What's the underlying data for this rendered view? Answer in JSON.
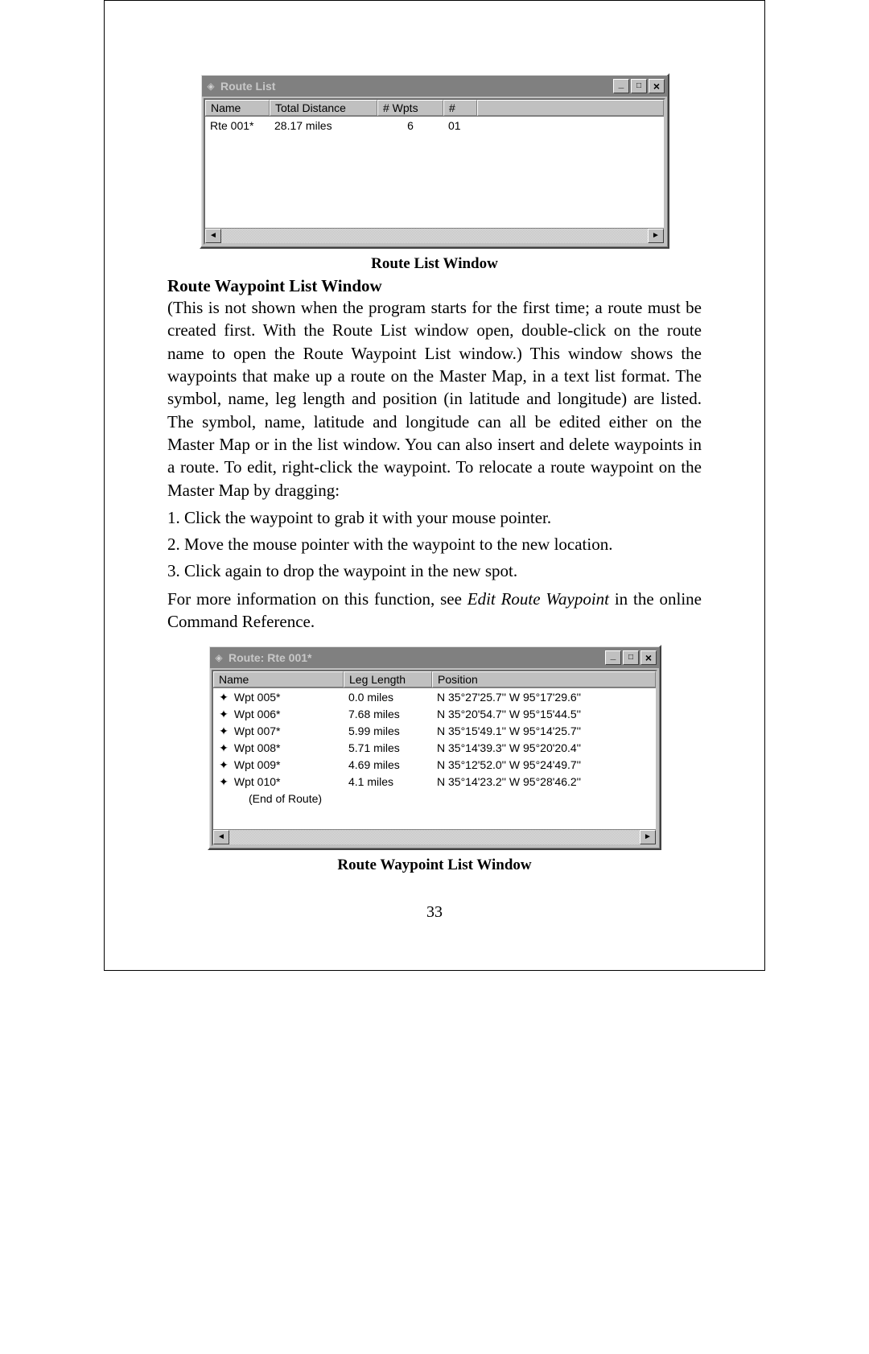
{
  "routeListWindow": {
    "title": "Route List",
    "columns": [
      "Name",
      "Total Distance",
      "# Wpts",
      "#"
    ],
    "rows": [
      {
        "name": "Rte 001*",
        "distance": "28.17 miles",
        "wpts": "6",
        "num": "01"
      }
    ],
    "colors": {
      "titlebar_bg": "#808080",
      "title_text": "#c8c8c8",
      "chrome": "#c0c0c0",
      "client_bg": "#ffffff"
    }
  },
  "waypointWindow": {
    "title": "Route: Rte 001*",
    "columns": [
      "Name",
      "Leg Length",
      "Position"
    ],
    "rows": [
      {
        "name": "Wpt 005*",
        "leg": "0.0 miles",
        "pos": "N 35°27'25.7'' W  95°17'29.6''"
      },
      {
        "name": "Wpt 006*",
        "leg": "7.68 miles",
        "pos": "N 35°20'54.7'' W  95°15'44.5''"
      },
      {
        "name": "Wpt 007*",
        "leg": "5.99 miles",
        "pos": "N 35°15'49.1'' W  95°14'25.7''"
      },
      {
        "name": "Wpt 008*",
        "leg": "5.71 miles",
        "pos": "N 35°14'39.3'' W  95°20'20.4''"
      },
      {
        "name": "Wpt 009*",
        "leg": "4.69 miles",
        "pos": "N 35°12'52.0'' W  95°24'49.7''"
      },
      {
        "name": "Wpt 010*",
        "leg": "4.1 miles",
        "pos": "N 35°14'23.2'' W  95°28'46.2''"
      }
    ],
    "end_label": "(End of Route)"
  },
  "captions": {
    "route_list": "Route List Window",
    "waypoint_list": "Route Waypoint List Window"
  },
  "text": {
    "heading": "Route Waypoint List Window",
    "para1": "(This is not shown when the program starts for the first time; a route must be created first. With the Route List window open, double-click on the route name to open the Route Waypoint List window.) This window shows the waypoints that make up a route on the Master Map, in a text list format. The symbol, name, leg length and position (in latitude and longitude) are listed. The symbol, name, latitude and longitude can all be edited either on the Master Map or in the list window. You can also insert and delete waypoints in a route. To edit, right-click the waypoint. To relocate a route waypoint on the Master Map by dragging:",
    "step1": "1. Click the waypoint to grab it with your mouse pointer.",
    "step2": "2. Move the mouse pointer with the waypoint to the new location.",
    "step3": "3. Click again to drop the waypoint in the new spot.",
    "para2a": "For more information on this function, see ",
    "para2_em": "Edit Route Waypoint",
    "para2b": " in the online Command Reference."
  },
  "page_number": "33",
  "icons": {
    "app_icon": "◈",
    "minimize": "_",
    "maximize": "□",
    "close": "×",
    "scroll_left": "◄",
    "scroll_right": "►",
    "waypoint_symbol": "✦"
  }
}
